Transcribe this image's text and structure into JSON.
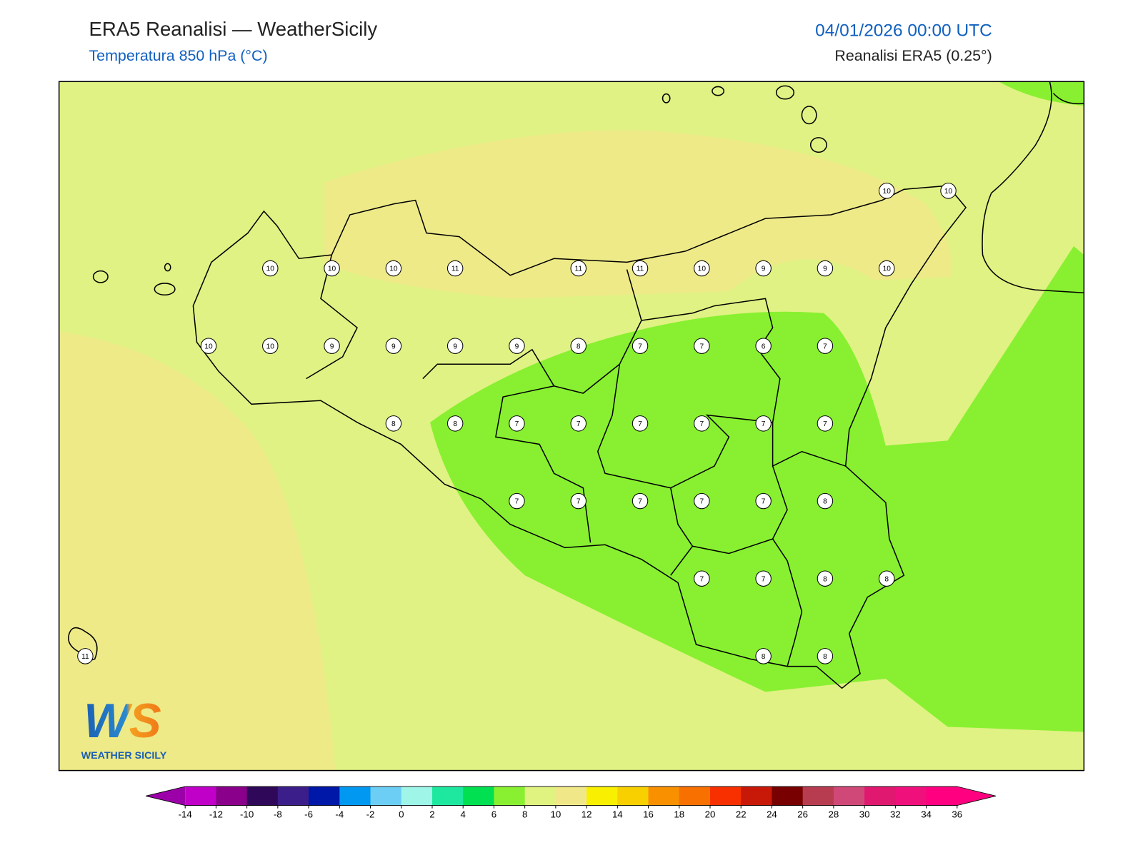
{
  "header": {
    "title": "ERA5 Reanalisi — WeatherSicily",
    "subtitle": "Temperatura 850 hPa (°C)",
    "date": "04/01/2026 00:00 UTC",
    "source": "Reanalisi ERA5 (0.25°)"
  },
  "grid_values": [
    [
      null,
      null,
      null,
      null,
      null,
      null,
      null,
      null,
      null,
      null,
      null,
      null,
      null,
      10,
      10
    ],
    [
      null,
      null,
      null,
      10,
      10,
      10,
      11,
      null,
      11,
      11,
      10,
      9,
      9,
      10,
      null
    ],
    [
      null,
      null,
      10,
      10,
      9,
      9,
      9,
      9,
      8,
      7,
      7,
      6,
      7,
      null,
      null
    ],
    [
      null,
      null,
      null,
      null,
      null,
      8,
      8,
      7,
      7,
      7,
      7,
      7,
      7,
      null,
      null
    ],
    [
      null,
      null,
      null,
      null,
      null,
      null,
      null,
      7,
      7,
      7,
      7,
      7,
      8,
      null,
      null
    ],
    [
      null,
      null,
      null,
      null,
      null,
      null,
      null,
      null,
      null,
      null,
      7,
      7,
      8,
      8,
      null
    ],
    [
      11,
      null,
      null,
      null,
      null,
      null,
      null,
      null,
      null,
      null,
      null,
      8,
      8,
      null,
      null
    ]
  ],
  "colorbar": {
    "ticks": [
      -14,
      -12,
      -10,
      -8,
      -6,
      -4,
      -2,
      0,
      2,
      4,
      6,
      8,
      10,
      12,
      14,
      16,
      18,
      20,
      22,
      24,
      26,
      28,
      30,
      32,
      34,
      36
    ],
    "colors": [
      "#9c00a8",
      "#c000c8",
      "#8a008a",
      "#30085a",
      "#3c1e8a",
      "#0018a8",
      "#0098f0",
      "#6ccef5",
      "#9ef5e8",
      "#1ee8a0",
      "#00e050",
      "#88f030",
      "#e0f280",
      "#f0e888",
      "#f8f000",
      "#f8d000",
      "#f89000",
      "#f87000",
      "#f83000",
      "#c81808",
      "#780000",
      "#b83c50",
      "#d04878",
      "#e01870",
      "#f0107c",
      "#ff0080",
      "#ff0080"
    ]
  },
  "logo": {
    "text": "WS",
    "caption": "WEATHER SICILY"
  }
}
